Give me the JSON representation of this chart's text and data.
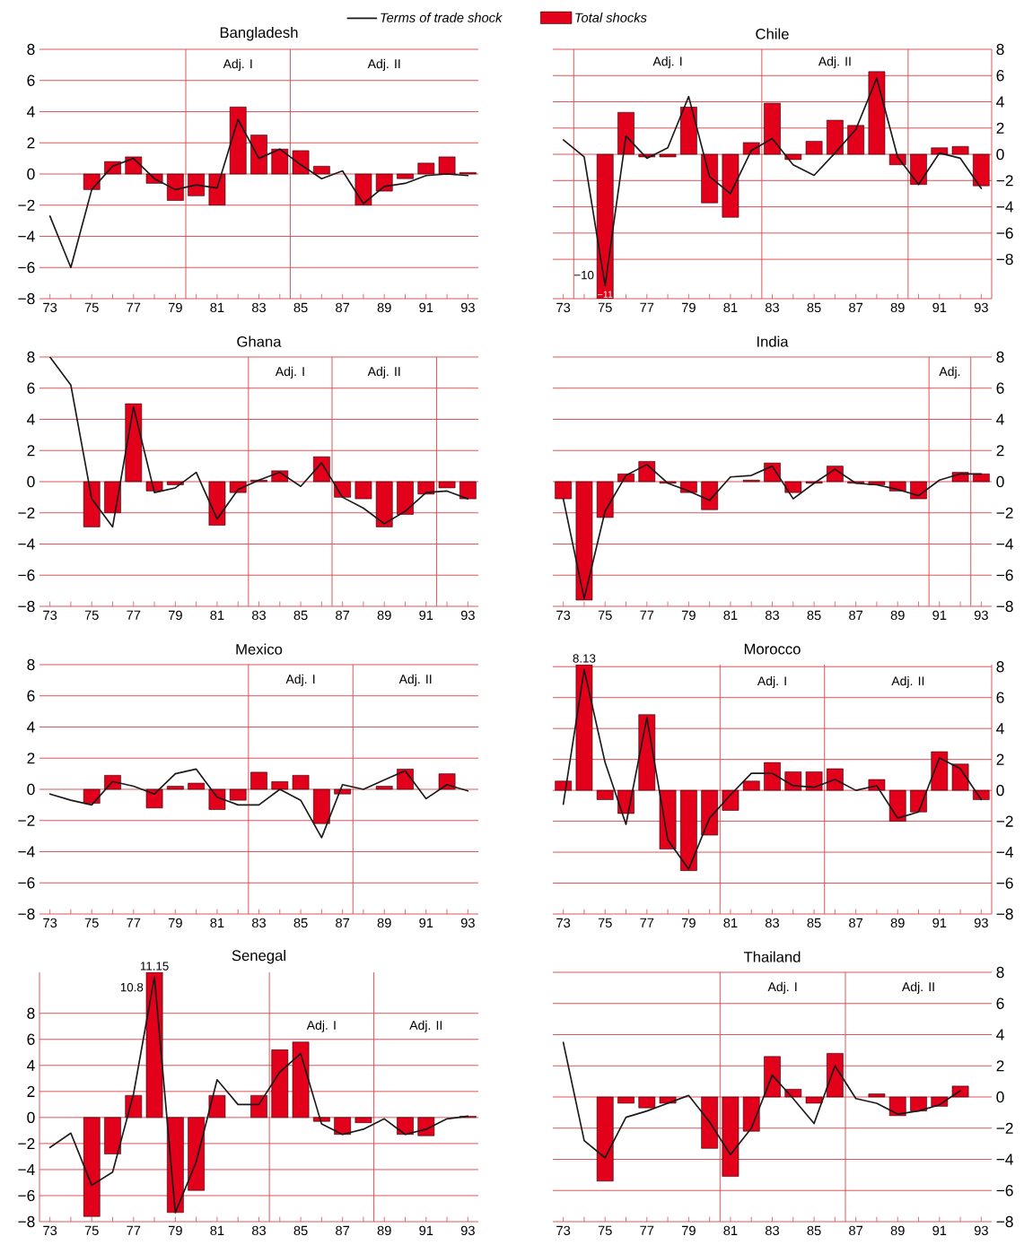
{
  "chart_data": [
    {
      "type": "bar",
      "title": "Bangladesh",
      "legend": "top",
      "grid": "y",
      "x": [
        73,
        74,
        75,
        76,
        77,
        78,
        79,
        80,
        81,
        82,
        83,
        84,
        85,
        86,
        87,
        88,
        89,
        90,
        91,
        92,
        93
      ],
      "xlim": [
        72.5,
        93.5
      ],
      "xticks": [
        73,
        {
          "value": 74,
          "label": null
        },
        75,
        {
          "value": 76,
          "label": null
        },
        77,
        {
          "value": 78,
          "label": null
        },
        79,
        {
          "value": 80,
          "label": null
        },
        81,
        {
          "value": 82,
          "label": null
        },
        83,
        {
          "value": 84,
          "label": null
        },
        85,
        {
          "value": 86,
          "label": null
        },
        87,
        {
          "value": 88,
          "label": null
        },
        89,
        {
          "value": 90,
          "label": null
        },
        91,
        {
          "value": 92,
          "label": null
        },
        93
      ],
      "ylim": [
        -8,
        8
      ],
      "yticks": [
        {
          "value": -8,
          "label": "−8"
        },
        {
          "value": -6,
          "label": "−6"
        },
        {
          "value": -4,
          "label": "−4"
        },
        {
          "value": -2,
          "label": "−2"
        },
        0,
        2,
        4,
        6,
        8
      ],
      "series": [
        {
          "name": "Total shocks",
          "color": "#e2001a",
          "values": [
            null,
            null,
            -1.0,
            0.8,
            1.1,
            -0.6,
            -1.7,
            -1.4,
            -2.0,
            4.3,
            2.5,
            1.6,
            1.5,
            0.5,
            null,
            -2.0,
            -1.1,
            -0.3,
            0.7,
            1.1,
            0.1
          ]
        },
        {
          "name": "Terms of trade shock",
          "type": "line",
          "color": "#1a1a1a",
          "values": [
            -2.7,
            -6.0,
            -1.0,
            0.5,
            1.0,
            -0.3,
            -1.0,
            -0.7,
            -0.9,
            3.5,
            1.0,
            1.6,
            0.6,
            -0.3,
            0.2,
            -1.9,
            -0.8,
            -0.6,
            -0.1,
            0.0,
            -0.1
          ]
        }
      ],
      "ref_lines": [
        {
          "axis": "x",
          "value": 79.5
        },
        {
          "axis": "x",
          "value": 84.5
        }
      ],
      "annotations": [
        "Adj. I",
        "Adj. II"
      ]
    },
    {
      "type": "bar",
      "title": "Chile",
      "grid": "y",
      "x": [
        73,
        74,
        75,
        76,
        77,
        78,
        79,
        80,
        81,
        82,
        83,
        84,
        85,
        86,
        87,
        88,
        89,
        90,
        91,
        92,
        93
      ],
      "xlim": [
        72.5,
        93.5
      ],
      "xticks": [
        73,
        {
          "value": 74,
          "label": null
        },
        75,
        {
          "value": 76,
          "label": null
        },
        77,
        {
          "value": 78,
          "label": null
        },
        79,
        {
          "value": 80,
          "label": null
        },
        81,
        {
          "value": 82,
          "label": null
        },
        83,
        {
          "value": 84,
          "label": null
        },
        85,
        {
          "value": 86,
          "label": null
        },
        87,
        {
          "value": 88,
          "label": null
        },
        89,
        {
          "value": 90,
          "label": null
        },
        91,
        {
          "value": 92,
          "label": null
        },
        93
      ],
      "ylim": [
        -11,
        8
      ],
      "yticks": [
        {
          "value": -8,
          "label": "−8"
        },
        {
          "value": -6,
          "label": "−6"
        },
        {
          "value": -4,
          "label": "−4"
        },
        {
          "value": -2,
          "label": "−2"
        },
        0,
        2,
        4,
        6,
        8
      ],
      "series": [
        {
          "color": "#e2001a",
          "values": [
            null,
            null,
            -11,
            3.2,
            -0.2,
            -0.2,
            3.6,
            -3.7,
            -4.8,
            0.9,
            3.9,
            -0.4,
            1.0,
            2.6,
            2.2,
            6.3,
            -0.8,
            -2.3,
            0.5,
            0.6,
            -2.4
          ],
          "value_labels": [
            null,
            null,
            "−11",
            null,
            null,
            null,
            null,
            null,
            null,
            null,
            null,
            null,
            null,
            null,
            null,
            null,
            null,
            null,
            null,
            null,
            null
          ]
        },
        {
          "type": "line",
          "color": "#1a1a1a",
          "values": [
            1.1,
            -0.2,
            -10,
            1.4,
            -0.3,
            0.5,
            4.4,
            -1.7,
            -3.0,
            0.3,
            1.2,
            -0.8,
            -1.6,
            0.1,
            1.9,
            5.8,
            -0.2,
            -2.3,
            0.1,
            -0.3,
            -2.6
          ],
          "value_labels": [
            null,
            null,
            "−10",
            null,
            null,
            null,
            null,
            null,
            null,
            null,
            null,
            null,
            null,
            null,
            null,
            null,
            null,
            null,
            null,
            null,
            null
          ]
        }
      ],
      "ref_lines": [
        {
          "axis": "x",
          "value": 73.5
        },
        {
          "axis": "x",
          "value": 82.5
        },
        {
          "axis": "x",
          "value": 89.5
        }
      ],
      "annotations": [
        "Adj. I",
        "Adj. II"
      ]
    },
    {
      "type": "bar",
      "title": "Ghana",
      "grid": "y",
      "x": [
        73,
        74,
        75,
        76,
        77,
        78,
        79,
        80,
        81,
        82,
        83,
        84,
        85,
        86,
        87,
        88,
        89,
        90,
        91,
        92,
        93
      ],
      "xlim": [
        72.5,
        93.5
      ],
      "xticks": [
        73,
        {
          "value": 74,
          "label": null
        },
        75,
        {
          "value": 76,
          "label": null
        },
        77,
        {
          "value": 78,
          "label": null
        },
        79,
        {
          "value": 80,
          "label": null
        },
        81,
        {
          "value": 82,
          "label": null
        },
        83,
        {
          "value": 84,
          "label": null
        },
        85,
        {
          "value": 86,
          "label": null
        },
        87,
        {
          "value": 88,
          "label": null
        },
        89,
        {
          "value": 90,
          "label": null
        },
        91,
        {
          "value": 92,
          "label": null
        },
        93
      ],
      "ylim": [
        -8,
        8
      ],
      "yticks": [
        {
          "value": -8,
          "label": "−8"
        },
        {
          "value": -6,
          "label": "−6"
        },
        {
          "value": -4,
          "label": "−4"
        },
        {
          "value": -2,
          "label": "−2"
        },
        0,
        2,
        4,
        6,
        8
      ],
      "series": [
        {
          "color": "#e2001a",
          "values": [
            null,
            null,
            -2.9,
            -2.0,
            5.0,
            -0.6,
            -0.2,
            null,
            -2.8,
            -0.7,
            0.1,
            0.7,
            null,
            1.6,
            -1.0,
            -1.1,
            -2.9,
            -2.1,
            -0.8,
            -0.4,
            -1.1
          ]
        },
        {
          "type": "line",
          "color": "#1a1a1a",
          "values": [
            8.0,
            6.2,
            -1.1,
            -2.9,
            4.8,
            -0.7,
            -0.4,
            0.6,
            -2.4,
            -0.5,
            0.1,
            0.6,
            -0.3,
            1.2,
            -1.0,
            -1.7,
            -2.7,
            -1.9,
            -0.7,
            -0.6,
            -1.1
          ]
        }
      ],
      "ref_lines": [
        {
          "axis": "x",
          "value": 82.5
        },
        {
          "axis": "x",
          "value": 86.5
        },
        {
          "axis": "x",
          "value": 91.5
        }
      ],
      "annotations": [
        "Adj. I",
        "Adj. II"
      ]
    },
    {
      "type": "bar",
      "title": "India",
      "grid": "y",
      "x": [
        73,
        74,
        75,
        76,
        77,
        78,
        79,
        80,
        81,
        82,
        83,
        84,
        85,
        86,
        87,
        88,
        89,
        90,
        91,
        92,
        93
      ],
      "xlim": [
        72.5,
        93.5
      ],
      "xticks": [
        73,
        {
          "value": 74,
          "label": null
        },
        75,
        {
          "value": 76,
          "label": null
        },
        77,
        {
          "value": 78,
          "label": null
        },
        79,
        {
          "value": 80,
          "label": null
        },
        81,
        {
          "value": 82,
          "label": null
        },
        83,
        {
          "value": 84,
          "label": null
        },
        85,
        {
          "value": 86,
          "label": null
        },
        87,
        {
          "value": 88,
          "label": null
        },
        89,
        {
          "value": 90,
          "label": null
        },
        91,
        {
          "value": 92,
          "label": null
        },
        93
      ],
      "ylim": [
        -8,
        8
      ],
      "yticks": [
        {
          "value": -8,
          "label": "−8"
        },
        {
          "value": -6,
          "label": "−6"
        },
        {
          "value": -4,
          "label": "−4"
        },
        {
          "value": -2,
          "label": "−2"
        },
        0,
        2,
        4,
        6,
        8
      ],
      "series": [
        {
          "color": "#e2001a",
          "values": [
            -1.1,
            -7.6,
            -2.3,
            0.5,
            1.3,
            -0.1,
            -0.7,
            -1.8,
            null,
            0.1,
            1.2,
            -0.7,
            -0.1,
            1.0,
            -0.1,
            -0.2,
            -0.6,
            -1.1,
            null,
            0.6,
            0.5
          ]
        },
        {
          "type": "line",
          "color": "#1a1a1a",
          "values": [
            -1.1,
            -7.5,
            -1.9,
            0.4,
            1.1,
            -0.1,
            -0.6,
            -1.2,
            0.3,
            0.4,
            1.0,
            -1.1,
            -0.1,
            0.8,
            -0.1,
            -0.2,
            -0.5,
            -0.9,
            0.1,
            0.5,
            0.5
          ]
        }
      ],
      "ref_lines": [
        {
          "axis": "x",
          "value": 90.5
        },
        {
          "axis": "x",
          "value": 92.5
        }
      ],
      "annotations": [
        "Adj."
      ]
    },
    {
      "type": "bar",
      "title": "Mexico",
      "grid": "y",
      "x": [
        73,
        74,
        75,
        76,
        77,
        78,
        79,
        80,
        81,
        82,
        83,
        84,
        85,
        86,
        87,
        88,
        89,
        90,
        91,
        92,
        93
      ],
      "xlim": [
        72.5,
        93.5
      ],
      "xticks": [
        73,
        {
          "value": 74,
          "label": null
        },
        75,
        {
          "value": 76,
          "label": null
        },
        77,
        {
          "value": 78,
          "label": null
        },
        79,
        {
          "value": 80,
          "label": null
        },
        81,
        {
          "value": 82,
          "label": null
        },
        83,
        {
          "value": 84,
          "label": null
        },
        85,
        {
          "value": 86,
          "label": null
        },
        87,
        {
          "value": 88,
          "label": null
        },
        89,
        {
          "value": 90,
          "label": null
        },
        91,
        {
          "value": 92,
          "label": null
        },
        93
      ],
      "ylim": [
        -8,
        8
      ],
      "yticks": [
        {
          "value": -8,
          "label": "−8"
        },
        {
          "value": -6,
          "label": "−6"
        },
        {
          "value": -4,
          "label": "−4"
        },
        {
          "value": -2,
          "label": "−2"
        },
        0,
        2,
        4,
        6,
        8
      ],
      "series": [
        {
          "color": "#e2001a",
          "values": [
            null,
            null,
            -0.9,
            0.9,
            null,
            -1.2,
            0.2,
            0.4,
            -1.3,
            -0.7,
            1.1,
            0.5,
            0.9,
            -2.2,
            -0.3,
            null,
            0.2,
            1.3,
            null,
            1.0,
            null
          ]
        },
        {
          "type": "line",
          "color": "#1a1a1a",
          "values": [
            -0.3,
            -0.7,
            -1.0,
            0.5,
            0.2,
            -0.3,
            1.0,
            1.3,
            -0.5,
            -1.0,
            -1.0,
            0.0,
            -0.7,
            -3.1,
            0.3,
            0.0,
            0.6,
            1.2,
            -0.6,
            0.3,
            -0.1
          ]
        }
      ],
      "ref_lines": [
        {
          "axis": "x",
          "value": 82.5
        },
        {
          "axis": "x",
          "value": 87.5
        }
      ],
      "annotations": [
        "Adj. I",
        "Adj. II"
      ]
    },
    {
      "type": "bar",
      "title": "Morocco",
      "grid": "y",
      "x": [
        73,
        74,
        75,
        76,
        77,
        78,
        79,
        80,
        81,
        82,
        83,
        84,
        85,
        86,
        87,
        88,
        89,
        90,
        91,
        92,
        93
      ],
      "xlim": [
        72.5,
        93.5
      ],
      "xticks": [
        73,
        {
          "value": 74,
          "label": null
        },
        75,
        {
          "value": 76,
          "label": null
        },
        77,
        {
          "value": 78,
          "label": null
        },
        79,
        {
          "value": 80,
          "label": null
        },
        81,
        {
          "value": 82,
          "label": null
        },
        83,
        {
          "value": 84,
          "label": null
        },
        85,
        {
          "value": 86,
          "label": null
        },
        87,
        {
          "value": 88,
          "label": null
        },
        89,
        {
          "value": 90,
          "label": null
        },
        91,
        {
          "value": 92,
          "label": null
        },
        93
      ],
      "ylim": [
        -8,
        8.13
      ],
      "yticks": [
        {
          "value": -8,
          "label": "−8"
        },
        {
          "value": -6,
          "label": "−6"
        },
        {
          "value": -4,
          "label": "−4"
        },
        {
          "value": -2,
          "label": "−2"
        },
        0,
        2,
        4,
        6,
        8
      ],
      "series": [
        {
          "color": "#e2001a",
          "values": [
            0.6,
            8.13,
            -0.6,
            -1.5,
            4.9,
            -3.8,
            -5.2,
            -2.9,
            -1.3,
            0.6,
            1.8,
            1.2,
            1.2,
            1.4,
            null,
            0.7,
            -2.0,
            -1.4,
            2.5,
            1.7,
            -0.6
          ],
          "value_labels": [
            null,
            "8.13",
            null,
            null,
            null,
            null,
            null,
            null,
            null,
            null,
            null,
            null,
            null,
            null,
            null,
            null,
            null,
            null,
            null,
            null,
            null
          ]
        },
        {
          "type": "line",
          "color": "#1a1a1a",
          "values": [
            -0.9,
            7.8,
            1.8,
            -2.2,
            4.7,
            -3.2,
            -5.1,
            -1.8,
            -0.3,
            1.1,
            1.1,
            0.3,
            0.2,
            0.7,
            0.0,
            0.3,
            -1.8,
            -1.4,
            2.1,
            1.4,
            -0.6
          ]
        }
      ],
      "ref_lines": [
        {
          "axis": "x",
          "value": 80.5
        },
        {
          "axis": "x",
          "value": 85.5
        }
      ],
      "annotations": [
        "Adj. I",
        "Adj. II"
      ]
    },
    {
      "type": "bar",
      "title": "Senegal",
      "grid": "y",
      "x": [
        73,
        74,
        75,
        76,
        77,
        78,
        79,
        80,
        81,
        82,
        83,
        84,
        85,
        86,
        87,
        88,
        89,
        90,
        91,
        92,
        93
      ],
      "xlim": [
        72.5,
        93.5
      ],
      "xticks": [
        73,
        {
          "value": 74,
          "label": null
        },
        75,
        {
          "value": 76,
          "label": null
        },
        77,
        {
          "value": 78,
          "label": null
        },
        79,
        {
          "value": 80,
          "label": null
        },
        81,
        {
          "value": 82,
          "label": null
        },
        83,
        {
          "value": 84,
          "label": null
        },
        85,
        {
          "value": 86,
          "label": null
        },
        87,
        {
          "value": 88,
          "label": null
        },
        89,
        {
          "value": 90,
          "label": null
        },
        91,
        {
          "value": 92,
          "label": null
        },
        93
      ],
      "ylim": [
        -8,
        11.15
      ],
      "yticks": [
        {
          "value": -8,
          "label": "−8"
        },
        {
          "value": -6,
          "label": "−6"
        },
        {
          "value": -4,
          "label": "−4"
        },
        {
          "value": -2,
          "label": "−2"
        },
        0,
        2,
        4,
        6,
        8
      ],
      "series": [
        {
          "color": "#e2001a",
          "values": [
            null,
            null,
            -7.6,
            -2.8,
            1.7,
            11.15,
            -7.3,
            -5.6,
            1.7,
            null,
            1.7,
            5.2,
            5.8,
            -0.3,
            -1.3,
            -0.4,
            null,
            -1.3,
            -1.4,
            null,
            0.1
          ],
          "value_labels": [
            null,
            null,
            null,
            null,
            null,
            "11.15",
            null,
            null,
            null,
            null,
            null,
            null,
            null,
            null,
            null,
            null,
            null,
            null,
            null,
            null,
            null
          ]
        },
        {
          "type": "line",
          "color": "#1a1a1a",
          "values": [
            -2.3,
            -1.2,
            -5.2,
            -4.2,
            1.8,
            10.8,
            -7.3,
            -3.4,
            2.9,
            1.0,
            1.0,
            3.5,
            4.9,
            -0.5,
            -1.3,
            -0.9,
            -0.1,
            -1.3,
            -0.9,
            -0.1,
            0.1
          ],
          "value_labels": [
            null,
            null,
            null,
            null,
            null,
            "10.8",
            null,
            null,
            null,
            null,
            null,
            null,
            null,
            null,
            null,
            null,
            null,
            null,
            null,
            null,
            null
          ]
        }
      ],
      "ref_lines": [
        {
          "axis": "x",
          "value": 83.5
        },
        {
          "axis": "x",
          "value": 88.5
        }
      ],
      "annotations": [
        "Adj. I",
        "Adj. II"
      ]
    },
    {
      "type": "bar",
      "title": "Thailand",
      "grid": "y",
      "x": [
        73,
        74,
        75,
        76,
        77,
        78,
        79,
        80,
        81,
        82,
        83,
        84,
        85,
        86,
        87,
        88,
        89,
        90,
        91,
        92
      ],
      "xlim": [
        72.5,
        93.5
      ],
      "xticks": [
        73,
        {
          "value": 74,
          "label": null
        },
        75,
        {
          "value": 76,
          "label": null
        },
        77,
        {
          "value": 78,
          "label": null
        },
        79,
        {
          "value": 80,
          "label": null
        },
        81,
        {
          "value": 82,
          "label": null
        },
        83,
        {
          "value": 84,
          "label": null
        },
        85,
        {
          "value": 86,
          "label": null
        },
        87,
        {
          "value": 88,
          "label": null
        },
        89,
        {
          "value": 90,
          "label": null
        },
        91,
        {
          "value": 92,
          "label": null
        },
        93
      ],
      "ylim": [
        -8,
        8
      ],
      "yticks": [
        {
          "value": -8,
          "label": "−8"
        },
        {
          "value": -6,
          "label": "−6"
        },
        {
          "value": -4,
          "label": "−4"
        },
        {
          "value": -2,
          "label": "−2"
        },
        0,
        2,
        4,
        6,
        8
      ],
      "series": [
        {
          "color": "#e2001a",
          "values": [
            null,
            null,
            -5.4,
            -0.4,
            -0.7,
            -0.4,
            null,
            -3.3,
            -5.1,
            -2.2,
            2.6,
            0.5,
            -0.4,
            2.8,
            null,
            0.2,
            -1.2,
            -0.9,
            -0.6,
            0.7
          ]
        },
        {
          "type": "line",
          "color": "#1a1a1a",
          "values": [
            3.5,
            -2.8,
            -3.9,
            -1.3,
            -0.9,
            -0.4,
            0.1,
            -1.6,
            -3.7,
            -2.0,
            1.4,
            -0.1,
            -1.7,
            2.0,
            -0.1,
            -0.4,
            -1.1,
            -0.9,
            -0.5,
            0.4
          ]
        }
      ],
      "ref_lines": [
        {
          "axis": "x",
          "value": 80.5
        },
        {
          "axis": "x",
          "value": 86.5
        }
      ],
      "annotations": [
        "Adj. I",
        "Adj. II"
      ]
    }
  ]
}
